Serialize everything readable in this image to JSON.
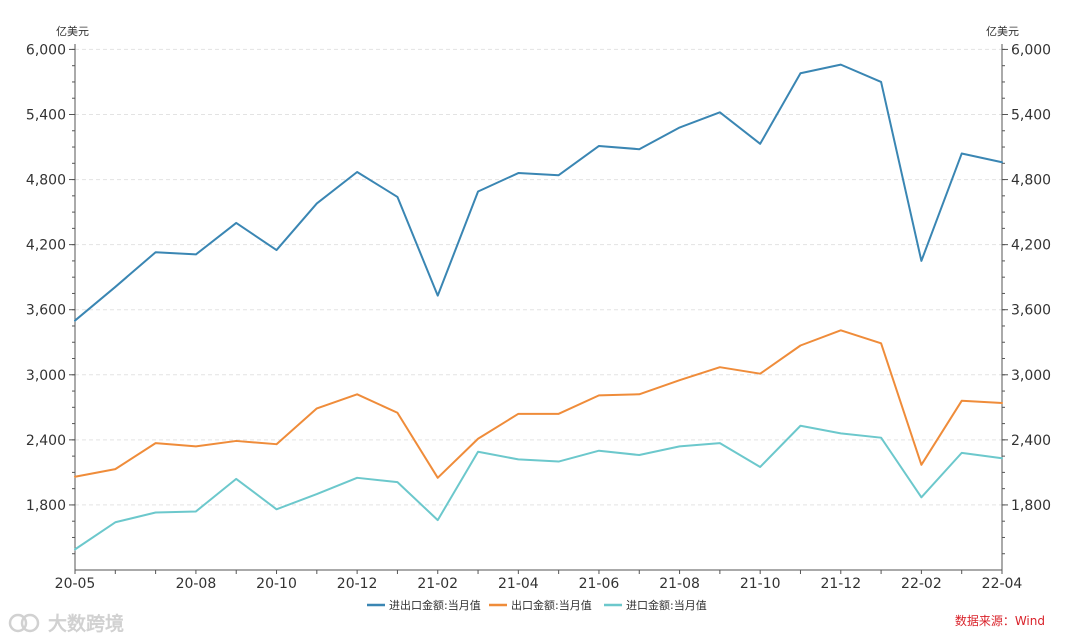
{
  "chart_data": {
    "type": "line",
    "unit_left": "亿美元",
    "unit_right": "亿美元",
    "x": [
      "20-05",
      "20-06",
      "20-07",
      "20-08",
      "20-09",
      "20-10",
      "20-11",
      "20-12",
      "21-01",
      "21-02",
      "21-03",
      "21-04",
      "21-05",
      "21-06",
      "21-07",
      "21-08",
      "21-09",
      "21-10",
      "21-11",
      "21-12",
      "22-01",
      "22-02",
      "22-03",
      "22-04"
    ],
    "x_tick_labels": [
      "20-05",
      "20-08",
      "20-10",
      "20-12",
      "21-02",
      "21-04",
      "21-06",
      "21-08",
      "21-10",
      "21-12",
      "22-02",
      "22-04"
    ],
    "ylim": [
      1200,
      6050
    ],
    "y_ticks": [
      1800,
      2400,
      3000,
      3600,
      4200,
      4800,
      5400,
      6000
    ],
    "y_tick_labels": [
      "1,800",
      "2,400",
      "3,000",
      "3,600",
      "4,200",
      "4,800",
      "5,400",
      "6,000"
    ],
    "grid": true,
    "legend_position": "bottom-center",
    "series": [
      {
        "name": "进出口金额:当月值",
        "color": "#3a86b3",
        "values": [
          3500,
          3810,
          4130,
          4110,
          4400,
          4150,
          4580,
          4870,
          4640,
          3730,
          4690,
          4860,
          4840,
          5110,
          5080,
          5280,
          5420,
          5130,
          5780,
          5860,
          5700,
          4050,
          5040,
          4960
        ]
      },
      {
        "name": "出口金额:当月值",
        "color": "#ef8c3a",
        "values": [
          2060,
          2130,
          2370,
          2340,
          2390,
          2360,
          2690,
          2820,
          2650,
          2050,
          2410,
          2640,
          2640,
          2810,
          2820,
          2950,
          3070,
          3010,
          3270,
          3410,
          3290,
          2170,
          2760,
          2740
        ]
      },
      {
        "name": "进口金额:当月值",
        "color": "#6cc8cc",
        "values": [
          1390,
          1640,
          1730,
          1740,
          2040,
          1760,
          1900,
          2050,
          2010,
          1660,
          2290,
          2220,
          2200,
          2300,
          2260,
          2340,
          2370,
          2150,
          2530,
          2460,
          2420,
          1870,
          2280,
          2230
        ]
      }
    ],
    "source": "数据来源：Wind"
  },
  "watermark": {
    "text": "大数跨境",
    "icon": "logo-icon"
  }
}
